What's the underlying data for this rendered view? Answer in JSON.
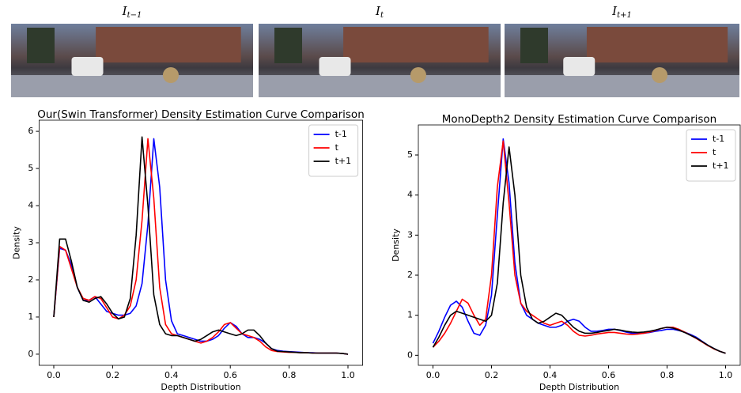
{
  "images": [
    {
      "label": "I",
      "subscript": "t−1"
    },
    {
      "label": "I",
      "subscript": "t"
    },
    {
      "label": "I",
      "subscript": "t+1"
    }
  ],
  "chart_data": [
    {
      "type": "line",
      "title": "Our(Swin Transformer) Density Estimation Curve Comparison",
      "xlabel": "Depth Distribution",
      "ylabel": "Density",
      "legend": "upper right",
      "x": [
        0,
        0.02,
        0.04,
        0.06,
        0.08,
        0.1,
        0.12,
        0.14,
        0.16,
        0.18,
        0.2,
        0.22,
        0.24,
        0.26,
        0.28,
        0.3,
        0.32,
        0.34,
        0.36,
        0.38,
        0.4,
        0.42,
        0.44,
        0.46,
        0.48,
        0.5,
        0.52,
        0.54,
        0.56,
        0.58,
        0.6,
        0.62,
        0.64,
        0.66,
        0.68,
        0.7,
        0.72,
        0.74,
        0.76,
        0.78,
        0.8,
        0.82,
        0.84,
        0.86,
        0.88,
        0.9,
        0.92,
        0.94,
        0.96,
        0.98,
        1.0
      ],
      "series": [
        {
          "name": "t-1",
          "color": "#0000ff",
          "values": [
            1.0,
            2.85,
            2.8,
            2.4,
            1.8,
            1.45,
            1.45,
            1.55,
            1.35,
            1.15,
            1.1,
            1.05,
            1.05,
            1.1,
            1.3,
            1.9,
            3.5,
            5.8,
            4.5,
            2.0,
            0.9,
            0.55,
            0.5,
            0.45,
            0.4,
            0.35,
            0.35,
            0.4,
            0.5,
            0.7,
            0.85,
            0.75,
            0.55,
            0.45,
            0.45,
            0.4,
            0.3,
            0.15,
            0.1,
            0.08,
            0.07,
            0.06,
            0.05,
            0.04,
            0.04,
            0.03,
            0.03,
            0.03,
            0.03,
            0.02,
            0.0
          ]
        },
        {
          "name": "t",
          "color": "#ff0000",
          "values": [
            1.0,
            2.9,
            2.8,
            2.3,
            1.8,
            1.5,
            1.45,
            1.55,
            1.5,
            1.25,
            1.0,
            0.95,
            1.05,
            1.3,
            2.0,
            3.6,
            5.8,
            4.2,
            1.8,
            0.8,
            0.55,
            0.5,
            0.45,
            0.4,
            0.35,
            0.3,
            0.35,
            0.45,
            0.6,
            0.8,
            0.85,
            0.7,
            0.55,
            0.5,
            0.45,
            0.35,
            0.2,
            0.1,
            0.07,
            0.06,
            0.05,
            0.05,
            0.04,
            0.04,
            0.03,
            0.03,
            0.03,
            0.03,
            0.03,
            0.02,
            0.0
          ]
        },
        {
          "name": "t+1",
          "color": "#000000",
          "values": [
            1.0,
            3.1,
            3.1,
            2.5,
            1.8,
            1.45,
            1.4,
            1.5,
            1.55,
            1.35,
            1.1,
            0.95,
            1.0,
            1.5,
            3.2,
            5.85,
            4.0,
            1.6,
            0.8,
            0.55,
            0.5,
            0.5,
            0.45,
            0.4,
            0.35,
            0.4,
            0.5,
            0.6,
            0.65,
            0.6,
            0.55,
            0.5,
            0.55,
            0.65,
            0.65,
            0.5,
            0.3,
            0.15,
            0.08,
            0.07,
            0.06,
            0.05,
            0.04,
            0.04,
            0.03,
            0.03,
            0.03,
            0.03,
            0.03,
            0.02,
            0.0
          ]
        }
      ],
      "xlim": [
        -0.05,
        1.05
      ],
      "ylim": [
        -0.3,
        6.3
      ],
      "xticks": [
        {
          "value": 0,
          "label": "0.0"
        },
        {
          "value": 0.2,
          "label": "0.2"
        },
        {
          "value": 0.4,
          "label": "0.4"
        },
        {
          "value": 0.6,
          "label": "0.6"
        },
        {
          "value": 0.8,
          "label": "0.8"
        },
        {
          "value": 1,
          "label": "1.0"
        }
      ],
      "yticks": [
        0,
        1,
        2,
        3,
        4,
        5,
        6
      ]
    },
    {
      "type": "line",
      "title": "MonoDepth2 Density Estimation Curve Comparison",
      "xlabel": "Depth Distribution",
      "ylabel": "Density",
      "legend": "upper right",
      "x": [
        0,
        0.02,
        0.04,
        0.06,
        0.08,
        0.1,
        0.12,
        0.14,
        0.16,
        0.18,
        0.2,
        0.22,
        0.24,
        0.26,
        0.28,
        0.3,
        0.32,
        0.34,
        0.36,
        0.38,
        0.4,
        0.42,
        0.44,
        0.46,
        0.48,
        0.5,
        0.52,
        0.54,
        0.56,
        0.58,
        0.6,
        0.62,
        0.64,
        0.66,
        0.68,
        0.7,
        0.72,
        0.74,
        0.76,
        0.78,
        0.8,
        0.82,
        0.84,
        0.86,
        0.88,
        0.9,
        0.92,
        0.94,
        0.96,
        0.98,
        1.0
      ],
      "series": [
        {
          "name": "t-1",
          "color": "#0000ff",
          "values": [
            0.3,
            0.6,
            0.95,
            1.25,
            1.35,
            1.2,
            0.85,
            0.55,
            0.5,
            0.75,
            1.5,
            3.5,
            5.4,
            4.3,
            2.3,
            1.3,
            1.0,
            0.9,
            0.8,
            0.75,
            0.7,
            0.7,
            0.75,
            0.85,
            0.9,
            0.85,
            0.7,
            0.6,
            0.6,
            0.62,
            0.65,
            0.65,
            0.62,
            0.58,
            0.55,
            0.55,
            0.55,
            0.57,
            0.6,
            0.62,
            0.65,
            0.65,
            0.62,
            0.58,
            0.52,
            0.45,
            0.35,
            0.25,
            0.17,
            0.1,
            0.05
          ]
        },
        {
          "name": "t",
          "color": "#ff0000",
          "values": [
            0.2,
            0.35,
            0.55,
            0.8,
            1.1,
            1.4,
            1.3,
            1.0,
            0.75,
            0.9,
            2.0,
            4.2,
            5.35,
            3.8,
            2.0,
            1.3,
            1.1,
            1.0,
            0.9,
            0.8,
            0.75,
            0.8,
            0.85,
            0.75,
            0.6,
            0.5,
            0.48,
            0.5,
            0.53,
            0.55,
            0.57,
            0.57,
            0.55,
            0.53,
            0.52,
            0.53,
            0.55,
            0.58,
            0.62,
            0.67,
            0.7,
            0.7,
            0.65,
            0.58,
            0.5,
            0.42,
            0.33,
            0.24,
            0.16,
            0.1,
            0.05
          ]
        },
        {
          "name": "t+1",
          "color": "#000000",
          "values": [
            0.2,
            0.45,
            0.75,
            1.0,
            1.1,
            1.05,
            1.0,
            0.95,
            0.9,
            0.85,
            1.0,
            1.8,
            3.8,
            5.2,
            4.0,
            2.0,
            1.2,
            0.9,
            0.8,
            0.85,
            0.95,
            1.05,
            1.0,
            0.85,
            0.7,
            0.6,
            0.55,
            0.55,
            0.57,
            0.6,
            0.62,
            0.65,
            0.63,
            0.6,
            0.58,
            0.57,
            0.58,
            0.6,
            0.63,
            0.67,
            0.7,
            0.68,
            0.63,
            0.57,
            0.5,
            0.43,
            0.34,
            0.25,
            0.17,
            0.1,
            0.05
          ]
        }
      ],
      "xlim": [
        -0.05,
        1.05
      ],
      "ylim": [
        -0.25,
        5.75
      ],
      "xticks": [
        {
          "value": 0,
          "label": "0.0"
        },
        {
          "value": 0.2,
          "label": "0.2"
        },
        {
          "value": 0.4,
          "label": "0.4"
        },
        {
          "value": 0.6,
          "label": "0.6"
        },
        {
          "value": 0.8,
          "label": "0.8"
        },
        {
          "value": 1,
          "label": "1.0"
        }
      ],
      "yticks": [
        0,
        1,
        2,
        3,
        4,
        5
      ]
    }
  ]
}
